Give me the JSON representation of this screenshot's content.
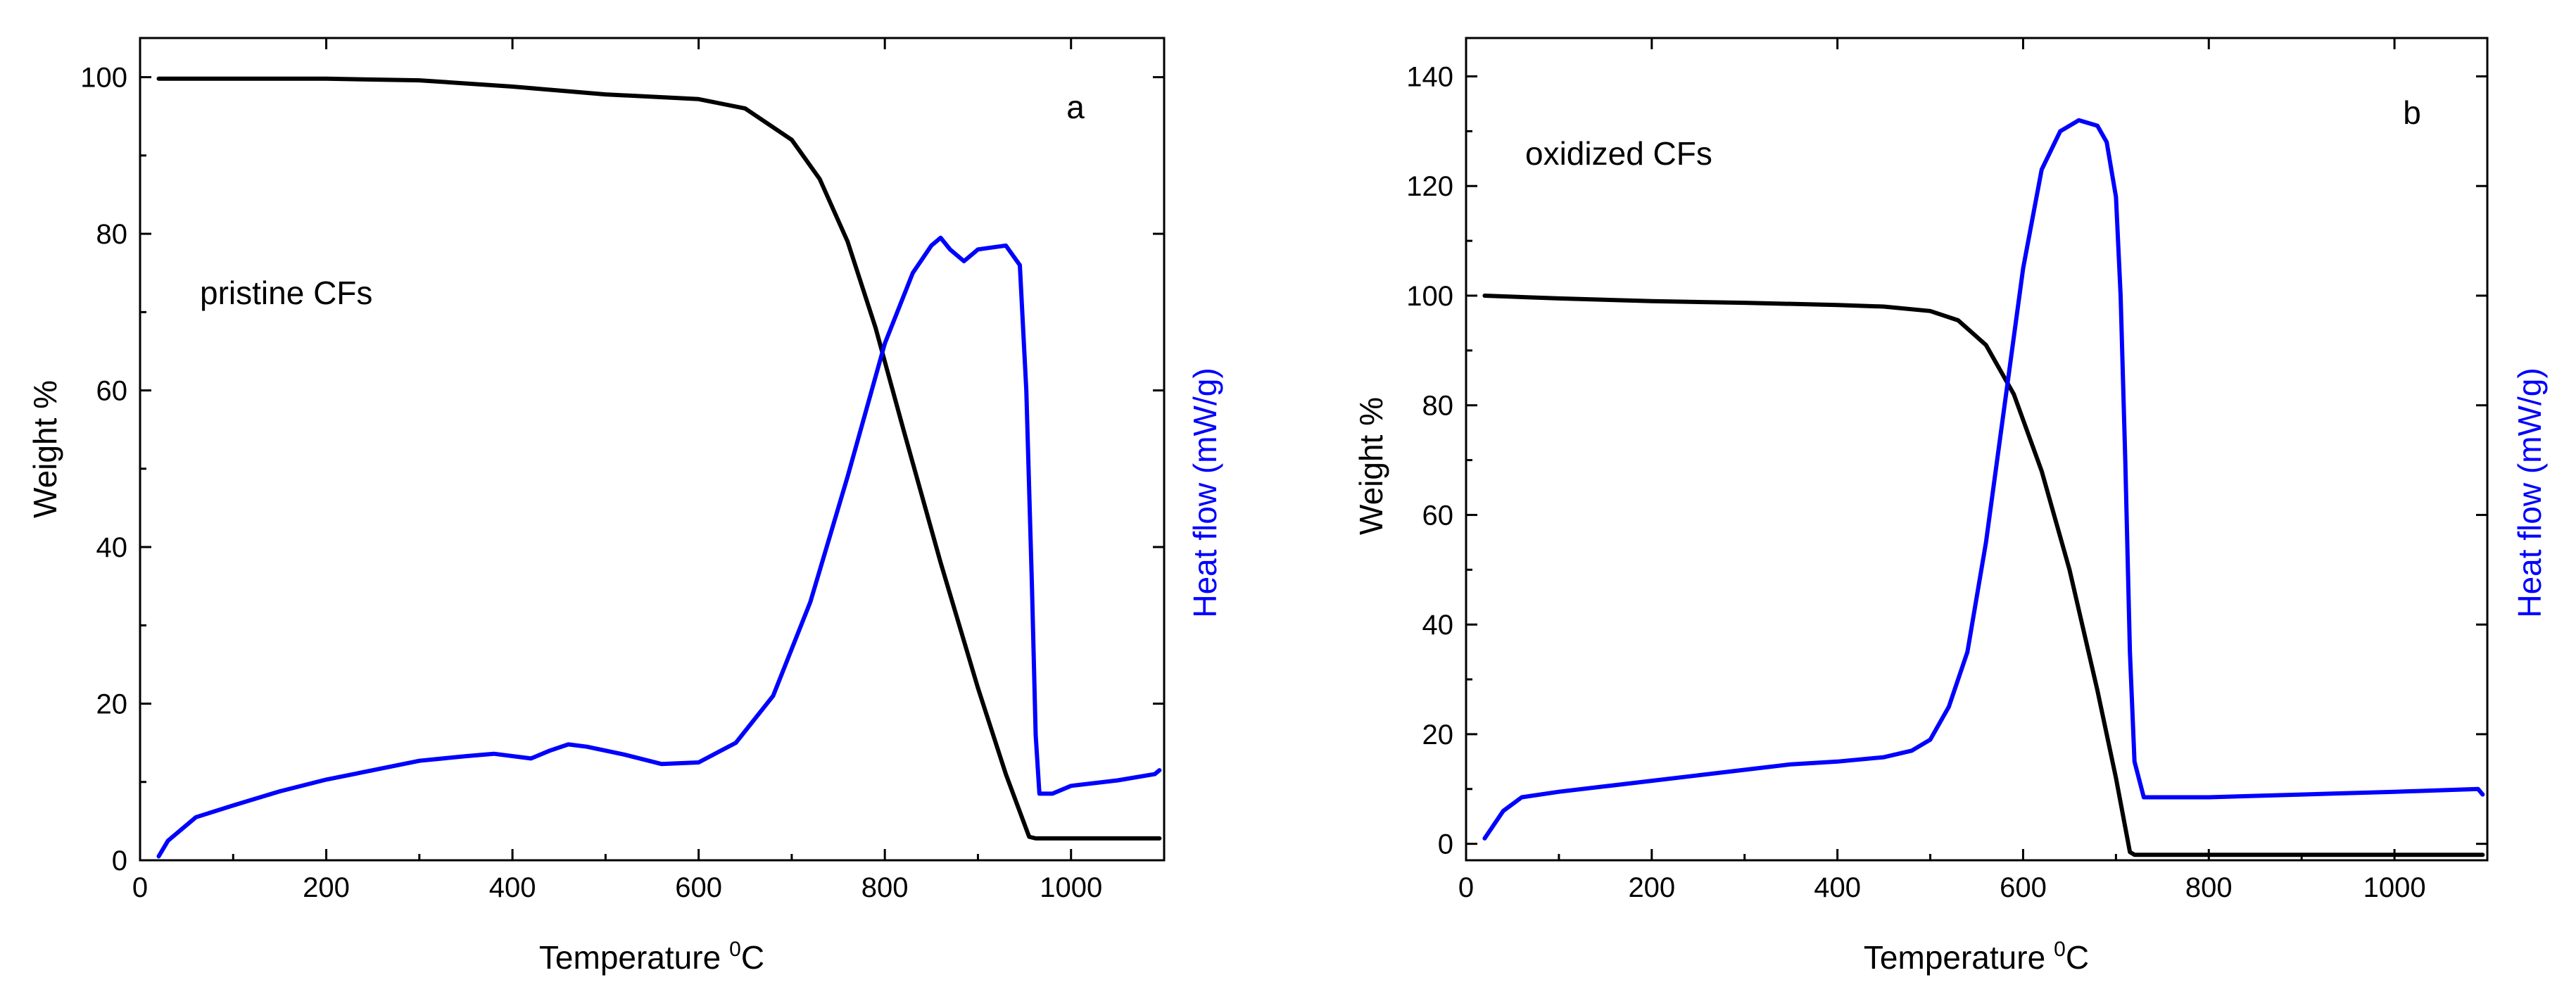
{
  "chart_data": [
    {
      "type": "line",
      "panel_label": "a",
      "annotation": "pristine CFs",
      "xlabel": "Temperature",
      "xlabel_sup": "0",
      "xlabel_unit": "C",
      "ylabel": "Weight  %",
      "ylabel_right": "Heat flow (mW/g)",
      "xlim": [
        0,
        1100
      ],
      "ylim": [
        0,
        105
      ],
      "xticks": [
        0,
        200,
        400,
        600,
        800,
        1000
      ],
      "yticks": [
        0,
        20,
        40,
        60,
        80,
        100
      ],
      "series": [
        {
          "name": "Weight",
          "color": "#000000",
          "axis": "left",
          "x": [
            20,
            100,
            200,
            300,
            400,
            500,
            600,
            650,
            700,
            730,
            760,
            790,
            820,
            860,
            900,
            930,
            955,
            962,
            1000,
            1050,
            1095
          ],
          "y": [
            99.8,
            99.8,
            99.8,
            99.6,
            98.8,
            97.8,
            97.2,
            96.0,
            92.0,
            87.0,
            79.0,
            68.0,
            55.0,
            38.0,
            22.0,
            11.0,
            3.0,
            2.8,
            2.8,
            2.8,
            2.8
          ]
        },
        {
          "name": "Heat flow",
          "color": "#0000ff",
          "axis": "right",
          "x": [
            20,
            30,
            60,
            100,
            150,
            200,
            250,
            300,
            350,
            380,
            420,
            440,
            460,
            480,
            520,
            560,
            600,
            640,
            680,
            720,
            760,
            800,
            830,
            850,
            860,
            870,
            885,
            900,
            930,
            945,
            952,
            958,
            962,
            966,
            980,
            1000,
            1050,
            1090,
            1095
          ],
          "y": [
            0.5,
            2.5,
            5.5,
            7.0,
            8.8,
            10.3,
            11.5,
            12.7,
            13.3,
            13.6,
            13.0,
            14.0,
            14.8,
            14.5,
            13.5,
            12.3,
            12.5,
            15.0,
            21.0,
            33.0,
            49.0,
            66.0,
            75.0,
            78.5,
            79.5,
            78.0,
            76.5,
            78.0,
            78.5,
            76.0,
            60.0,
            35.0,
            16.0,
            8.5,
            8.5,
            9.5,
            10.2,
            11.0,
            11.5
          ]
        }
      ]
    },
    {
      "type": "line",
      "panel_label": "b",
      "annotation": "oxidized CFs",
      "xlabel": "Temperature",
      "xlabel_sup": "0",
      "xlabel_unit": "C",
      "ylabel": "Weight %",
      "ylabel_right": "Heat flow (mW/g)",
      "xlim": [
        0,
        1100
      ],
      "ylim": [
        -3,
        147
      ],
      "xticks": [
        0,
        200,
        400,
        600,
        800,
        1000
      ],
      "yticks": [
        0,
        20,
        40,
        60,
        80,
        100,
        120,
        140
      ],
      "series": [
        {
          "name": "Weight",
          "color": "#000000",
          "axis": "left",
          "x": [
            20,
            100,
            200,
            300,
            400,
            450,
            500,
            530,
            560,
            590,
            620,
            650,
            680,
            700,
            715,
            720,
            800,
            900,
            1000,
            1095
          ],
          "y": [
            100.0,
            99.5,
            99.0,
            98.7,
            98.3,
            98.0,
            97.2,
            95.5,
            91.0,
            82.0,
            68.0,
            50.0,
            28.0,
            12.0,
            -1.5,
            -2.0,
            -2.0,
            -2.0,
            -2.0,
            -2.0
          ]
        },
        {
          "name": "Heat flow",
          "color": "#0000ff",
          "axis": "right",
          "x": [
            20,
            40,
            60,
            100,
            150,
            200,
            250,
            300,
            350,
            400,
            450,
            480,
            500,
            520,
            540,
            560,
            580,
            600,
            620,
            640,
            660,
            680,
            690,
            700,
            705,
            710,
            715,
            720,
            730,
            800,
            900,
            1000,
            1090,
            1095
          ],
          "y": [
            1.0,
            6.0,
            8.5,
            9.5,
            10.5,
            11.5,
            12.5,
            13.5,
            14.5,
            15.0,
            15.8,
            17.0,
            19.0,
            25.0,
            35.0,
            55.0,
            80.0,
            105.0,
            123.0,
            130.0,
            132.0,
            131.0,
            128.0,
            118.0,
            100.0,
            70.0,
            35.0,
            15.0,
            8.5,
            8.5,
            9.0,
            9.5,
            10.0,
            9.0
          ]
        }
      ]
    }
  ]
}
